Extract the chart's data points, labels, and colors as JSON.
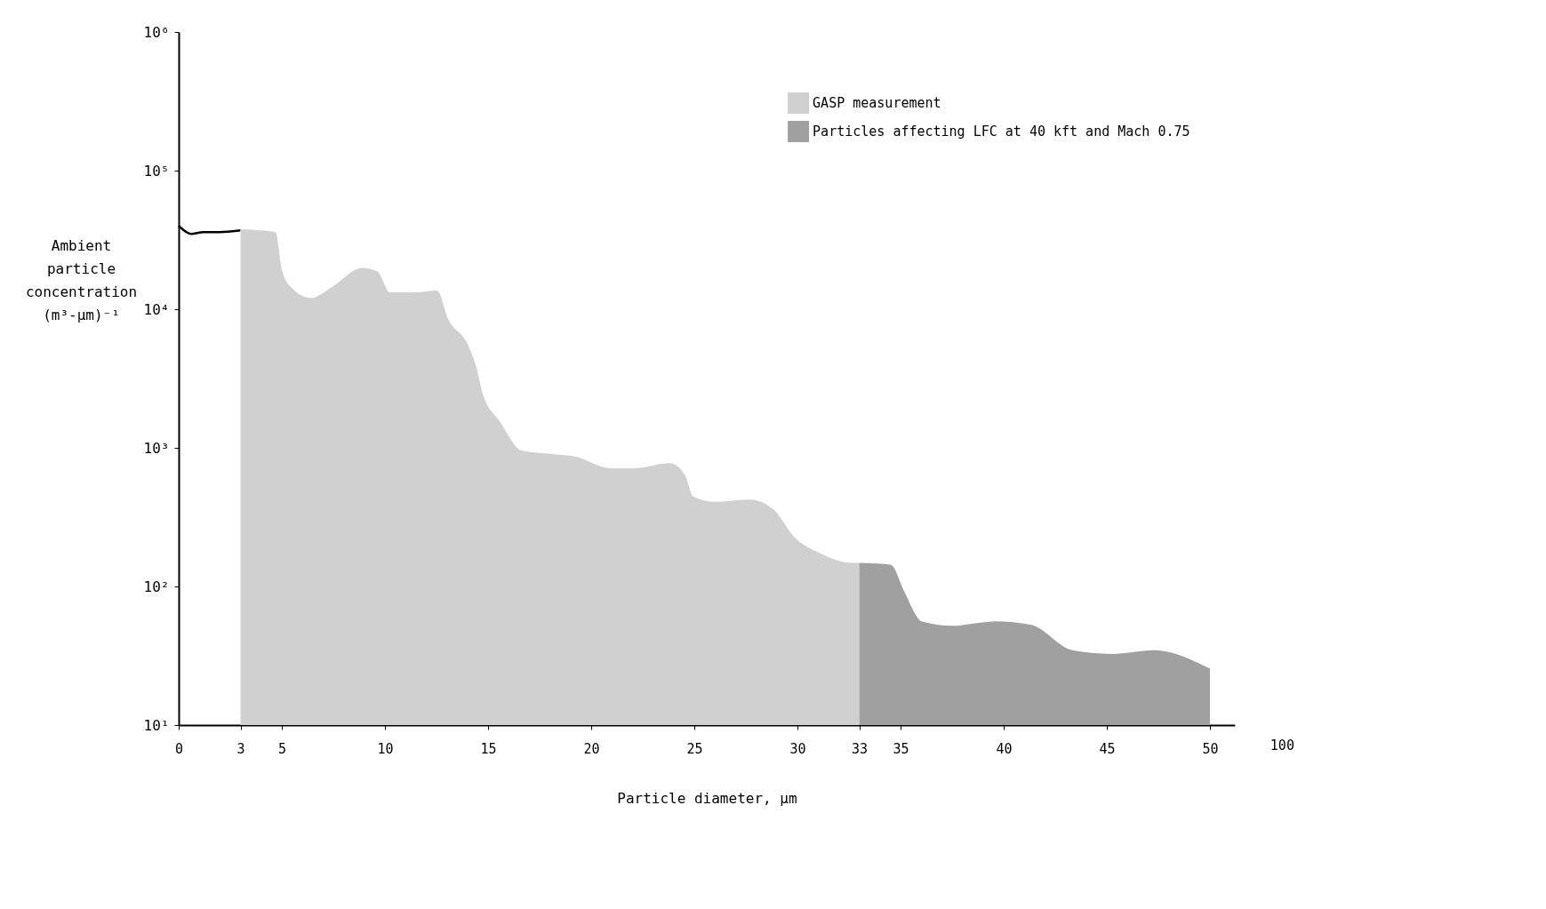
{
  "chart_data": [
    {
      "type": "area",
      "xlabel": "Particle diameter, µm",
      "ylabel": "Ambient particle concentration (m³-µm)⁻¹",
      "log": "y",
      "xlim": [
        0,
        51.2
      ],
      "xticks": [
        0,
        3,
        5,
        10,
        15,
        20,
        25,
        30,
        33,
        35,
        40,
        45,
        50
      ],
      "ylim": [
        10,
        1000000
      ],
      "yticks": [
        {
          "value": 10,
          "label": "10¹"
        },
        {
          "value": 100,
          "label": "10²"
        },
        {
          "value": 1000,
          "label": "10³"
        },
        {
          "value": 10000,
          "label": "10⁴"
        },
        {
          "value": 100000,
          "label": "10⁵"
        },
        {
          "value": 1000000,
          "label": "10⁶"
        }
      ],
      "legend": "top right",
      "grid": false,
      "annotations": [
        "100"
      ],
      "series": [
        {
          "type": "line",
          "color": "#000000",
          "x": [
            0,
            0.6,
            1.2,
            2,
            3
          ],
          "values": [
            40000,
            35000,
            36000,
            36000,
            37000
          ]
        },
        {
          "name": "GASP measurement",
          "color": "#d0d0d0",
          "x": [
            3,
            4.65,
            4.95,
            5.5,
            6.4,
            7.4,
            8.9,
            9.6,
            10.2,
            11.5,
            12.5,
            13,
            14,
            14.4,
            14.7,
            15.5,
            16.6,
            18.3,
            19.2,
            20.9,
            22.1,
            23.8,
            24.5,
            24.9,
            26,
            27.7,
            28.8,
            29.8,
            31.1,
            32.6,
            33
          ],
          "values": [
            37000,
            35500,
            19000,
            13800,
            11800,
            14000,
            19500,
            18500,
            13000,
            13000,
            13400,
            8500,
            5400,
            3700,
            2400,
            1550,
            940,
            880,
            850,
            700,
            700,
            760,
            630,
            440,
            400,
            415,
            355,
            225,
            170,
            145,
            145
          ]
        },
        {
          "name": "Particles affecting LFC at 40 kft and Mach 0.75",
          "color": "#a0a0a0",
          "x": [
            33,
            34.5,
            35.1,
            36,
            37.5,
            39.6,
            41.3,
            43.3,
            45.2,
            47.3,
            50
          ],
          "values": [
            145,
            141,
            93,
            55,
            51,
            55,
            52,
            34,
            32,
            34,
            25
          ]
        }
      ]
    }
  ]
}
